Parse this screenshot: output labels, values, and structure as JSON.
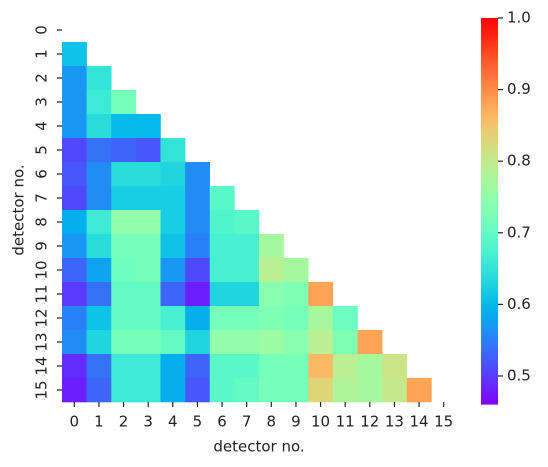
{
  "chart_data": {
    "type": "heatmap",
    "x_label": "detector no.",
    "y_label": "detector no.",
    "x": [
      0,
      1,
      2,
      3,
      4,
      5,
      6,
      7,
      8,
      9,
      10,
      11,
      12,
      13,
      14,
      15
    ],
    "y": [
      0,
      1,
      2,
      3,
      4,
      5,
      6,
      7,
      8,
      9,
      10,
      11,
      12,
      13,
      14,
      15
    ],
    "colormap": "rainbow",
    "clim": [
      0.46,
      1.0
    ],
    "cticks": [
      0.5,
      0.6,
      0.7,
      0.8,
      0.9,
      {
        "value": 1,
        "label": "1.0"
      }
    ],
    "values": [
      [
        null,
        null,
        null,
        null,
        null,
        null,
        null,
        null,
        null,
        null,
        null,
        null,
        null,
        null,
        null,
        null
      ],
      [
        0.61,
        null,
        null,
        null,
        null,
        null,
        null,
        null,
        null,
        null,
        null,
        null,
        null,
        null,
        null,
        null
      ],
      [
        0.57,
        0.65,
        null,
        null,
        null,
        null,
        null,
        null,
        null,
        null,
        null,
        null,
        null,
        null,
        null,
        null
      ],
      [
        0.57,
        0.66,
        0.72,
        null,
        null,
        null,
        null,
        null,
        null,
        null,
        null,
        null,
        null,
        null,
        null,
        null
      ],
      [
        0.57,
        0.64,
        0.6,
        0.6,
        null,
        null,
        null,
        null,
        null,
        null,
        null,
        null,
        null,
        null,
        null,
        null
      ],
      [
        0.51,
        0.54,
        0.53,
        0.52,
        0.65,
        null,
        null,
        null,
        null,
        null,
        null,
        null,
        null,
        null,
        null,
        null
      ],
      [
        0.52,
        0.56,
        0.64,
        0.64,
        0.63,
        0.56,
        null,
        null,
        null,
        null,
        null,
        null,
        null,
        null,
        null,
        null
      ],
      [
        0.51,
        0.56,
        0.62,
        0.62,
        0.62,
        0.56,
        0.69,
        null,
        null,
        null,
        null,
        null,
        null,
        null,
        null,
        null
      ],
      [
        0.59,
        0.66,
        0.75,
        0.75,
        0.62,
        0.56,
        0.68,
        0.69,
        null,
        null,
        null,
        null,
        null,
        null,
        null,
        null
      ],
      [
        0.57,
        0.64,
        0.72,
        0.72,
        0.61,
        0.55,
        0.67,
        0.67,
        0.77,
        null,
        null,
        null,
        null,
        null,
        null,
        null
      ],
      [
        0.53,
        0.58,
        0.71,
        0.72,
        0.57,
        0.51,
        0.67,
        0.67,
        0.79,
        0.77,
        null,
        null,
        null,
        null,
        null,
        null
      ],
      [
        0.5,
        0.54,
        0.7,
        0.7,
        0.53,
        0.48,
        0.63,
        0.63,
        0.74,
        0.73,
        0.88,
        null,
        null,
        null,
        null,
        null
      ],
      [
        0.55,
        0.61,
        0.7,
        0.7,
        0.67,
        0.59,
        0.72,
        0.72,
        0.73,
        0.72,
        0.77,
        0.71,
        null,
        null,
        null,
        null
      ],
      [
        0.56,
        0.63,
        0.72,
        0.72,
        0.7,
        0.63,
        0.75,
        0.75,
        0.76,
        0.74,
        0.79,
        0.73,
        0.88,
        null,
        null,
        null
      ],
      [
        0.49,
        0.54,
        0.66,
        0.66,
        0.59,
        0.53,
        0.69,
        0.69,
        0.72,
        0.72,
        0.86,
        0.79,
        0.77,
        0.81,
        null,
        null
      ],
      [
        0.48,
        0.53,
        0.66,
        0.66,
        0.59,
        0.52,
        0.69,
        0.7,
        0.72,
        0.72,
        0.83,
        0.78,
        0.77,
        0.8,
        0.88,
        null
      ]
    ]
  }
}
